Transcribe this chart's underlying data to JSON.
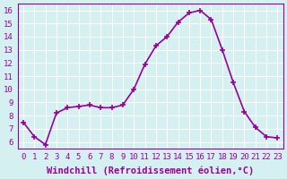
{
  "x": [
    0,
    1,
    2,
    3,
    4,
    5,
    6,
    7,
    8,
    9,
    10,
    11,
    12,
    13,
    14,
    15,
    16,
    17,
    18,
    19,
    20,
    21,
    22,
    23
  ],
  "y": [
    7.5,
    6.4,
    5.8,
    8.2,
    8.6,
    8.7,
    8.8,
    8.6,
    8.6,
    8.8,
    10.0,
    11.9,
    13.3,
    14.0,
    15.1,
    15.8,
    16.0,
    15.3,
    13.0,
    10.5,
    8.3,
    7.1,
    6.4,
    6.3
  ],
  "line_color": "#990099",
  "marker": "+",
  "marker_size": 5,
  "marker_edge_width": 1.2,
  "linewidth": 1.2,
  "xlabel": "Windchill (Refroidissement éolien,°C)",
  "yticks": [
    6,
    7,
    8,
    9,
    10,
    11,
    12,
    13,
    14,
    15,
    16
  ],
  "ylim": [
    5.5,
    16.5
  ],
  "xlim": [
    -0.5,
    23.5
  ],
  "bg_color": "#d4f0f0",
  "grid_color": "#ffffff",
  "xlabel_fontsize": 7.5,
  "tick_fontsize": 6.5,
  "tick_color": "#990099",
  "xlabel_color": "#990099"
}
